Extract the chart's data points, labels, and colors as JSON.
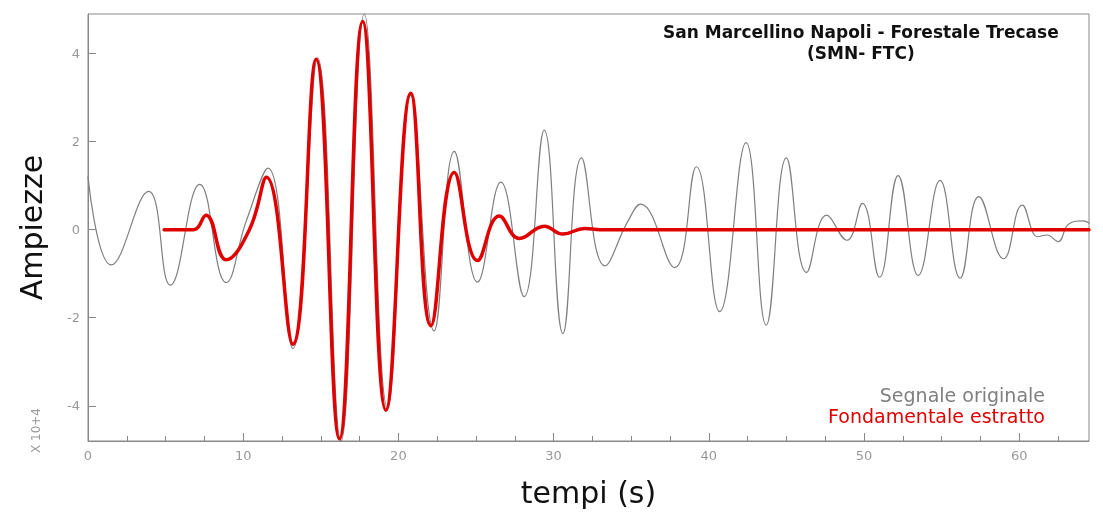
{
  "chart_data": {
    "type": "line",
    "title": "San Marcellino Napoli - Forestale Trecase",
    "subtitle": "(SMN- FTC)",
    "xlabel": "tempi (s)",
    "ylabel": "Ampiezze",
    "annotations": [
      "X 10+4"
    ],
    "xlim": [
      0,
      64.5
    ],
    "xticks": [
      0,
      10,
      20,
      30,
      40,
      50,
      60
    ],
    "ylim": [
      -4.8,
      4.9
    ],
    "yticks": [
      -4,
      -2,
      0,
      2,
      4
    ],
    "grid": false,
    "legend": "bottom right",
    "marker": "none",
    "line_style": "solid",
    "series": [
      {
        "name": "Segnale originale",
        "color": "#7f7f7f",
        "x": [
          0,
          1.5,
          3.9,
          5.3,
          7.2,
          8.9,
          10.2,
          11.6,
          13.2,
          14.8,
          16.3,
          17.8,
          19.3,
          20.8,
          22.3,
          23.6,
          25.1,
          26.6,
          28.1,
          29.4,
          30.6,
          31.8,
          33.3,
          34.8,
          35.6,
          37.8,
          39.2,
          40.7,
          42.4,
          43.7,
          45.0,
          46.3,
          47.6,
          48.9,
          49.9,
          51.0,
          52.2,
          53.5,
          54.9,
          56.2,
          57.4,
          59.0,
          60.2,
          61.2,
          61.8,
          62.5,
          63.2,
          64.1,
          64.5
        ],
        "values": [
          1.2,
          -0.8,
          0.87,
          -1.26,
          1.03,
          -1.2,
          0.2,
          1.4,
          -2.7,
          3.9,
          -4.8,
          4.9,
          -4.05,
          3.05,
          -2.3,
          1.78,
          -1.19,
          1.08,
          -1.52,
          2.26,
          -2.36,
          1.63,
          -0.82,
          0.2,
          0.58,
          -0.86,
          1.43,
          -1.86,
          1.98,
          -2.17,
          1.63,
          -0.97,
          0.33,
          -0.24,
          0.6,
          -1.08,
          1.23,
          -1.04,
          1.12,
          -1.1,
          0.75,
          -0.66,
          0.56,
          -0.16,
          -0.12,
          -0.27,
          0.13,
          0.2,
          0.15
        ]
      },
      {
        "name": "Fondamentale estratto",
        "color": "#e00000",
        "x": [
          4.9,
          6.8,
          7.6,
          8.9,
          10.4,
          11.5,
          13.2,
          14.7,
          16.2,
          17.7,
          19.2,
          20.8,
          22.1,
          23.6,
          25.1,
          26.5,
          27.8,
          29.4,
          30.6,
          32,
          33,
          64.5
        ],
        "values": [
          0,
          0,
          0.33,
          -0.68,
          0,
          1.19,
          -2.6,
          3.87,
          -4.75,
          4.73,
          -4.1,
          3.1,
          -2.18,
          1.3,
          -0.7,
          0.31,
          -0.2,
          0.08,
          -0.1,
          0.03,
          0,
          0
        ]
      }
    ]
  }
}
